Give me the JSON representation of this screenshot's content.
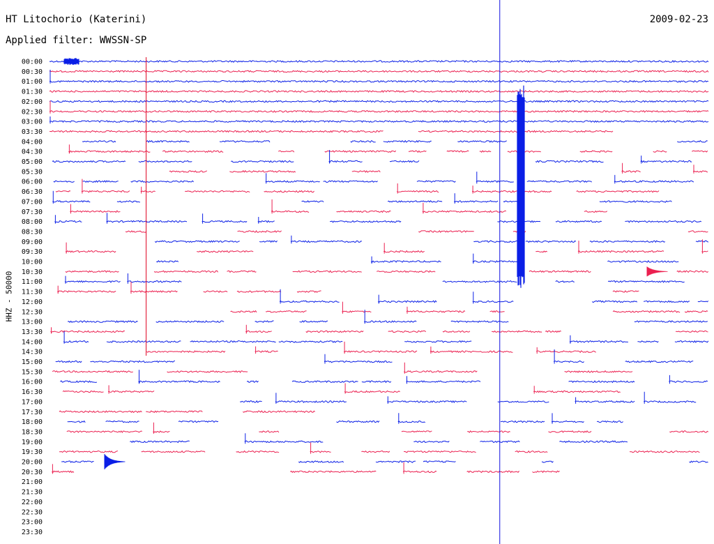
{
  "header": {
    "station": "HT Litochorio (Katerini)",
    "filter": "Applied filter: WWSSN-SP",
    "date": "2009-02-23"
  },
  "chart_data": {
    "type": "line",
    "title": "HT Litochorio (Katerini)",
    "subtitle": "Applied filter: WWSSN-SP",
    "date": "2009-02-23",
    "ylabel": "HHZ - 50000",
    "row_labels": [
      "00:00",
      "00:30",
      "01:00",
      "01:30",
      "02:00",
      "02:30",
      "03:00",
      "03:30",
      "04:00",
      "04:30",
      "05:00",
      "05:30",
      "06:00",
      "06:30",
      "07:00",
      "07:30",
      "08:00",
      "08:30",
      "09:00",
      "09:30",
      "10:00",
      "10:30",
      "11:00",
      "11:30",
      "12:00",
      "12:30",
      "13:00",
      "13:30",
      "14:00",
      "14:30",
      "15:00",
      "15:30",
      "16:00",
      "16:30",
      "17:00",
      "17:30",
      "18:00",
      "18:30",
      "19:00",
      "19:30",
      "20:00",
      "20:30",
      "21:00",
      "21:30",
      "22:00",
      "22:30",
      "23:00",
      "23:30"
    ],
    "rows_with_data": 42,
    "x_range_minutes": [
      0,
      30
    ],
    "colors": {
      "even_rows": "#0a1ee6",
      "odd_rows": "#eb2050",
      "markers": [
        "#e00020",
        "#1010e0"
      ]
    },
    "markers_minutes": [
      4.4,
      20.5
    ],
    "grid": false,
    "legend": "none"
  }
}
